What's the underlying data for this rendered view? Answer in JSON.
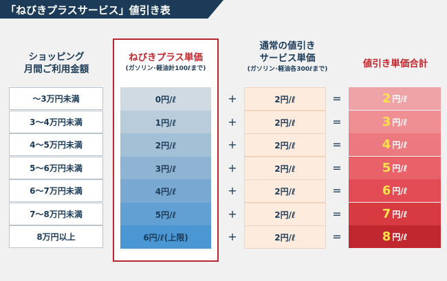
{
  "title": "「ねびきプラスサービス」値引き表",
  "headers": {
    "income_line1": "ショッピング",
    "income_line2": "月間ご利用金額",
    "nebiki_line1": "ねびきプラス単価",
    "nebiki_line2": "(ガソリン･軽油計100ℓまで)",
    "service_line1": "通常の値引き",
    "service_line2": "サービス単価",
    "service_line3": "(ガソリン･軽油各300ℓまで)",
    "total_line1": "値引き単価合計"
  },
  "operators": {
    "plus": "+",
    "equals": "="
  },
  "unit": "円/ℓ",
  "rows": [
    {
      "income": "〜3万円未満",
      "nebiki": "0円/ℓ",
      "service": "2円/ℓ",
      "total": "2"
    },
    {
      "income": "3〜4万円未満",
      "nebiki": "1円/ℓ",
      "service": "2円/ℓ",
      "total": "3"
    },
    {
      "income": "4〜5万円未満",
      "nebiki": "2円/ℓ",
      "service": "2円/ℓ",
      "total": "4"
    },
    {
      "income": "5〜6万円未満",
      "nebiki": "3円/ℓ",
      "service": "2円/ℓ",
      "total": "5"
    },
    {
      "income": "6〜7万円未満",
      "nebiki": "4円/ℓ",
      "service": "2円/ℓ",
      "total": "6"
    },
    {
      "income": "7〜8万円未満",
      "nebiki": "5円/ℓ",
      "service": "2円/ℓ",
      "total": "7"
    },
    {
      "income": "8万円以上",
      "nebiki": "6円/ℓ(上限)",
      "service": "2円/ℓ",
      "total": "8"
    }
  ],
  "colors": {
    "title_bg": "#1c3b58",
    "frame_red": "#b8262d",
    "nebiki_cells": [
      "#cfdae3",
      "#b8ccdb",
      "#a3c0d6",
      "#8fb4d3",
      "#79a9d2",
      "#62a0d3",
      "#4a97d4"
    ],
    "total_cells": [
      "#eea3a6",
      "#ef8f93",
      "#ec797f",
      "#e9626a",
      "#e44c55",
      "#d83a42",
      "#c1272f"
    ],
    "service_bg": "#fdebdd",
    "total_number": "#ffe34a"
  }
}
